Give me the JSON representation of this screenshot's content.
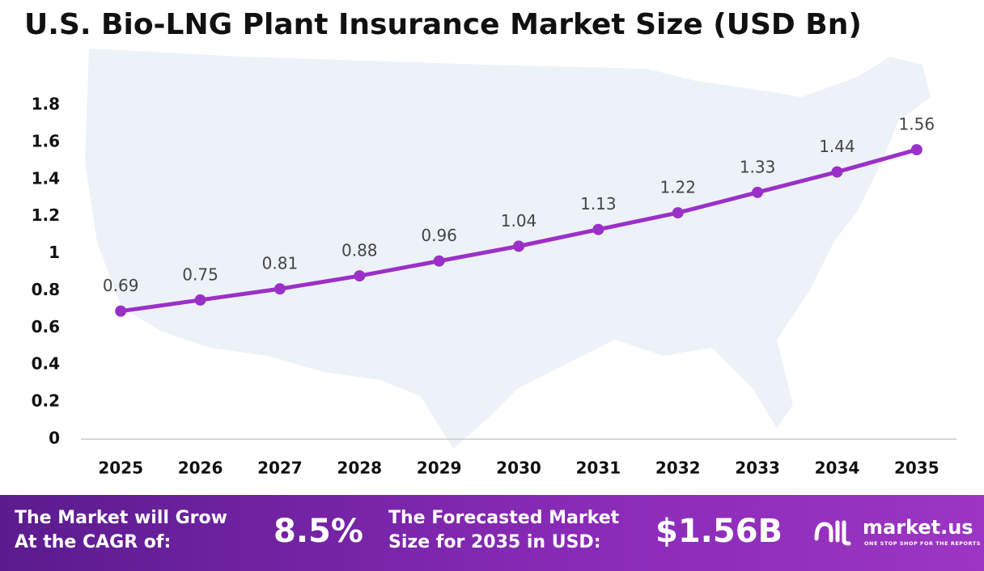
{
  "chart_data": {
    "type": "line",
    "title": "U.S. Bio-LNG Plant Insurance Market Size (USD Bn)",
    "categories": [
      "2025",
      "2026",
      "2027",
      "2028",
      "2029",
      "2030",
      "2031",
      "2032",
      "2033",
      "2034",
      "2035"
    ],
    "values": [
      0.69,
      0.75,
      0.81,
      0.88,
      0.96,
      1.04,
      1.13,
      1.22,
      1.33,
      1.44,
      1.56
    ],
    "color": "#9b30c8",
    "ylim": [
      0,
      1.8
    ],
    "yticks": [
      0,
      0.2,
      0.4,
      0.6,
      0.8,
      1,
      1.2,
      1.4,
      1.6,
      1.8
    ],
    "grid": false
  },
  "footer": {
    "cagr_label": [
      "The Market will Grow",
      "At the CAGR of:"
    ],
    "cagr_value": "8.5%",
    "forecast_label": [
      "The Forecasted Market",
      "Size for 2035 in USD:"
    ],
    "forecast_value": "$1.56B",
    "logo": "market.us",
    "tagline": "ONE STOP SHOP FOR THE REPORTS"
  }
}
